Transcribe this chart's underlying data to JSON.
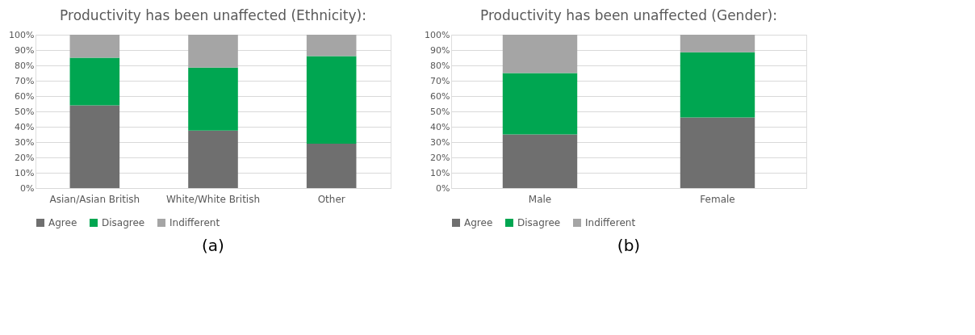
{
  "chart_data": [
    {
      "type": "bar",
      "title": "Productivity has been unaffected (Ethnicity):",
      "categories": [
        "Asian/Asian British",
        "White/White British",
        "Other"
      ],
      "stacked": true,
      "legend": "bottom",
      "grid": "y",
      "ylim": [
        0,
        100
      ],
      "yticks": [
        {
          "value": 0,
          "label": "0%"
        },
        {
          "value": 10,
          "label": "10%"
        },
        {
          "value": 20,
          "label": "20%"
        },
        {
          "value": 30,
          "label": "30%"
        },
        {
          "value": 40,
          "label": "40%"
        },
        {
          "value": 50,
          "label": "50%"
        },
        {
          "value": 60,
          "label": "60%"
        },
        {
          "value": 70,
          "label": "70%"
        },
        {
          "value": 80,
          "label": "80%"
        },
        {
          "value": 90,
          "label": "90%"
        },
        {
          "value": 100,
          "label": "100%"
        }
      ],
      "series": [
        {
          "name": "Agree",
          "color": "#6f6f6f",
          "values": [
            54,
            37.5,
            29
          ]
        },
        {
          "name": "Disagree",
          "color": "#00a651",
          "values": [
            31,
            41,
            57
          ]
        },
        {
          "name": "Indifferent",
          "color": "#a5a5a5",
          "values": [
            15,
            21.5,
            14
          ]
        }
      ],
      "annotations": [
        "(a)"
      ]
    },
    {
      "type": "bar",
      "title": "Productivity has been unaffected (Gender):",
      "categories": [
        "Male",
        "Female"
      ],
      "stacked": true,
      "legend": "bottom",
      "grid": "y",
      "ylim": [
        0,
        100
      ],
      "yticks": [
        {
          "value": 0,
          "label": "0%"
        },
        {
          "value": 10,
          "label": "10%"
        },
        {
          "value": 20,
          "label": "20%"
        },
        {
          "value": 30,
          "label": "30%"
        },
        {
          "value": 40,
          "label": "40%"
        },
        {
          "value": 50,
          "label": "50%"
        },
        {
          "value": 60,
          "label": "60%"
        },
        {
          "value": 70,
          "label": "70%"
        },
        {
          "value": 80,
          "label": "80%"
        },
        {
          "value": 90,
          "label": "90%"
        },
        {
          "value": 100,
          "label": "100%"
        }
      ],
      "series": [
        {
          "name": "Agree",
          "color": "#6f6f6f",
          "values": [
            35,
            46
          ]
        },
        {
          "name": "Disagree",
          "color": "#00a651",
          "values": [
            40,
            42.5
          ]
        },
        {
          "name": "Indifferent",
          "color": "#a5a5a5",
          "values": [
            25,
            11.5
          ]
        }
      ],
      "annotations": [
        "(b)"
      ]
    }
  ]
}
